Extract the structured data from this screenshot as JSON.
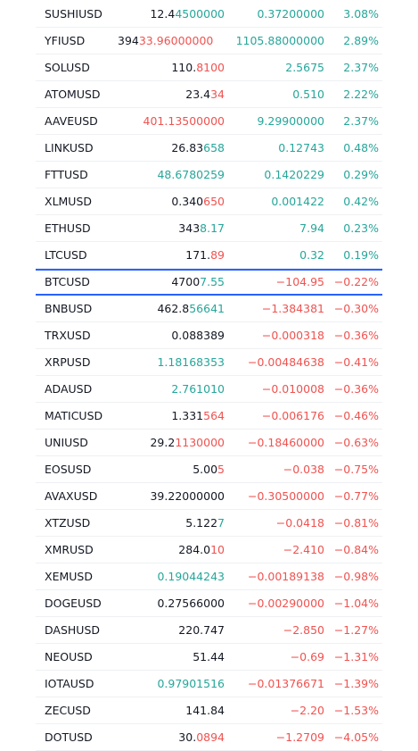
{
  "rows": [
    {
      "symbol": "SUSHIUSD",
      "price": [
        {
          "text": "12.4",
          "color": "#131722"
        },
        {
          "text": "4500000",
          "color": "#26a69a"
        }
      ],
      "change": "0.37200000",
      "percent": "3.08%",
      "color": "#26a69a"
    },
    {
      "symbol": "YFIUSD",
      "price": [
        {
          "text": "394",
          "color": "#131722"
        },
        {
          "text": "33.96000000",
          "color": "#ef5350"
        }
      ],
      "change": "1105.88000000",
      "percent": "2.89%",
      "color": "#26a69a"
    },
    {
      "symbol": "SOLUSD",
      "price": [
        {
          "text": "110.",
          "color": "#131722"
        },
        {
          "text": "8100",
          "color": "#ef5350"
        }
      ],
      "change": "2.5675",
      "percent": "2.37%",
      "color": "#26a69a"
    },
    {
      "symbol": "ATOMUSD",
      "price": [
        {
          "text": "23.4",
          "color": "#131722"
        },
        {
          "text": "34",
          "color": "#ef5350"
        }
      ],
      "change": "0.510",
      "percent": "2.22%",
      "color": "#26a69a"
    },
    {
      "symbol": "AAVEUSD",
      "price": [
        {
          "text": "401.13500000",
          "color": "#ef5350"
        }
      ],
      "change": "9.29900000",
      "percent": "2.37%",
      "color": "#26a69a"
    },
    {
      "symbol": "LINKUSD",
      "price": [
        {
          "text": "26.83",
          "color": "#131722"
        },
        {
          "text": "658",
          "color": "#26a69a"
        }
      ],
      "change": "0.12743",
      "percent": "0.48%",
      "color": "#26a69a"
    },
    {
      "symbol": "FTTUSD",
      "price": [
        {
          "text": "48.6780259",
          "color": "#26a69a"
        }
      ],
      "change": "0.1420229",
      "percent": "0.29%",
      "color": "#26a69a"
    },
    {
      "symbol": "XLMUSD",
      "price": [
        {
          "text": "0.340",
          "color": "#131722"
        },
        {
          "text": "650",
          "color": "#ef5350"
        }
      ],
      "change": "0.001422",
      "percent": "0.42%",
      "color": "#26a69a"
    },
    {
      "symbol": "ETHUSD",
      "price": [
        {
          "text": "343",
          "color": "#131722"
        },
        {
          "text": "8.17",
          "color": "#26a69a"
        }
      ],
      "change": "7.94",
      "percent": "0.23%",
      "color": "#26a69a"
    },
    {
      "symbol": "LTCUSD",
      "price": [
        {
          "text": "171.",
          "color": "#131722"
        },
        {
          "text": "89",
          "color": "#ef5350"
        }
      ],
      "change": "0.32",
      "percent": "0.19%",
      "color": "#26a69a"
    },
    {
      "symbol": "BTCUSD",
      "price": [
        {
          "text": "4700",
          "color": "#131722"
        },
        {
          "text": "7.55",
          "color": "#26a69a"
        }
      ],
      "change": "−104.95",
      "percent": "−0.22%",
      "color": "#ef5350",
      "highlight": true
    },
    {
      "symbol": "BNBUSD",
      "price": [
        {
          "text": "462.8",
          "color": "#131722"
        },
        {
          "text": "56641",
          "color": "#26a69a"
        }
      ],
      "change": "−1.384381",
      "percent": "−0.30%",
      "color": "#ef5350"
    },
    {
      "symbol": "TRXUSD",
      "price": [
        {
          "text": "0.088389",
          "color": "#131722"
        }
      ],
      "change": "−0.000318",
      "percent": "−0.36%",
      "color": "#ef5350"
    },
    {
      "symbol": "XRPUSD",
      "price": [
        {
          "text": "1.18168353",
          "color": "#26a69a"
        }
      ],
      "change": "−0.00484638",
      "percent": "−0.41%",
      "color": "#ef5350"
    },
    {
      "symbol": "ADAUSD",
      "price": [
        {
          "text": "2.761010",
          "color": "#26a69a"
        }
      ],
      "change": "−0.010008",
      "percent": "−0.36%",
      "color": "#ef5350"
    },
    {
      "symbol": "MATICUSD",
      "price": [
        {
          "text": "1.331",
          "color": "#131722"
        },
        {
          "text": "564",
          "color": "#ef5350"
        }
      ],
      "change": "−0.006176",
      "percent": "−0.46%",
      "color": "#ef5350"
    },
    {
      "symbol": "UNIUSD",
      "price": [
        {
          "text": "29.2",
          "color": "#131722"
        },
        {
          "text": "1130000",
          "color": "#ef5350"
        }
      ],
      "change": "−0.18460000",
      "percent": "−0.63%",
      "color": "#ef5350"
    },
    {
      "symbol": "EOSUSD",
      "price": [
        {
          "text": "5.00",
          "color": "#131722"
        },
        {
          "text": "5",
          "color": "#ef5350"
        }
      ],
      "change": "−0.038",
      "percent": "−0.75%",
      "color": "#ef5350"
    },
    {
      "symbol": "AVAXUSD",
      "price": [
        {
          "text": "39.22000000",
          "color": "#131722"
        }
      ],
      "change": "−0.30500000",
      "percent": "−0.77%",
      "color": "#ef5350"
    },
    {
      "symbol": "XTZUSD",
      "price": [
        {
          "text": "5.122",
          "color": "#131722"
        },
        {
          "text": "7",
          "color": "#26a69a"
        }
      ],
      "change": "−0.0418",
      "percent": "−0.81%",
      "color": "#ef5350"
    },
    {
      "symbol": "XMRUSD",
      "price": [
        {
          "text": "284.0",
          "color": "#131722"
        },
        {
          "text": "10",
          "color": "#ef5350"
        }
      ],
      "change": "−2.410",
      "percent": "−0.84%",
      "color": "#ef5350"
    },
    {
      "symbol": "XEMUSD",
      "price": [
        {
          "text": "0.19044243",
          "color": "#26a69a"
        }
      ],
      "change": "−0.00189138",
      "percent": "−0.98%",
      "color": "#ef5350"
    },
    {
      "symbol": "DOGEUSD",
      "price": [
        {
          "text": "0.27566000",
          "color": "#131722"
        }
      ],
      "change": "−0.00290000",
      "percent": "−1.04%",
      "color": "#ef5350"
    },
    {
      "symbol": "DASHUSD",
      "price": [
        {
          "text": "220.747",
          "color": "#131722"
        }
      ],
      "change": "−2.850",
      "percent": "−1.27%",
      "color": "#ef5350"
    },
    {
      "symbol": "NEOUSD",
      "price": [
        {
          "text": "51.44",
          "color": "#131722"
        }
      ],
      "change": "−0.69",
      "percent": "−1.31%",
      "color": "#ef5350"
    },
    {
      "symbol": "IOTAUSD",
      "price": [
        {
          "text": "0.97901516",
          "color": "#26a69a"
        }
      ],
      "change": "−0.01376671",
      "percent": "−1.39%",
      "color": "#ef5350"
    },
    {
      "symbol": "ZECUSD",
      "price": [
        {
          "text": "141.84",
          "color": "#131722"
        }
      ],
      "change": "−2.20",
      "percent": "−1.53%",
      "color": "#ef5350"
    },
    {
      "symbol": "DOTUSD",
      "price": [
        {
          "text": "30.",
          "color": "#131722"
        },
        {
          "text": "0894",
          "color": "#ef5350"
        }
      ],
      "change": "−1.2709",
      "percent": "−4.05%",
      "color": "#ef5350"
    }
  ]
}
